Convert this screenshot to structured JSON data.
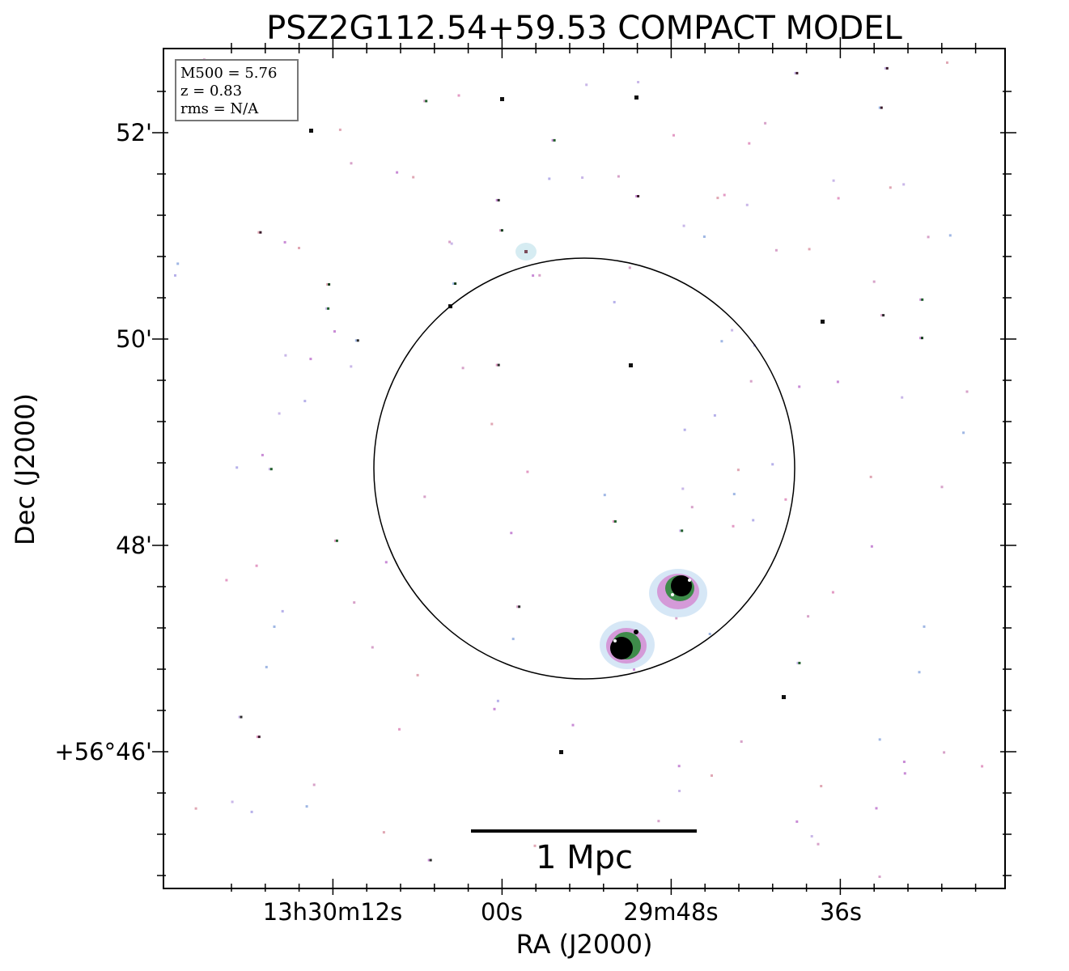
{
  "chart_data": {
    "type": "sky_image",
    "title": "PSZ2G112.54+59.53 COMPACT MODEL",
    "xlabel": "RA (J2000)",
    "ylabel": "Dec (J2000)",
    "x_tick_labels": [
      "13h30m12s",
      "00s",
      "29m48s",
      "36s"
    ],
    "y_tick_labels": [
      "52'",
      "50'",
      "48'",
      "+56°46'"
    ],
    "info_box": [
      "M500 = 5.76",
      "z = 0.83",
      "rms = N/A"
    ],
    "scale_bar_label": "1 Mpc",
    "circle_shown": true,
    "bright_sources": 2,
    "colors": {
      "source_core": "#000000",
      "source_ring": "#2e7d32",
      "halo": "#c98bd6",
      "outer_halo": "#bcd9f0"
    }
  }
}
